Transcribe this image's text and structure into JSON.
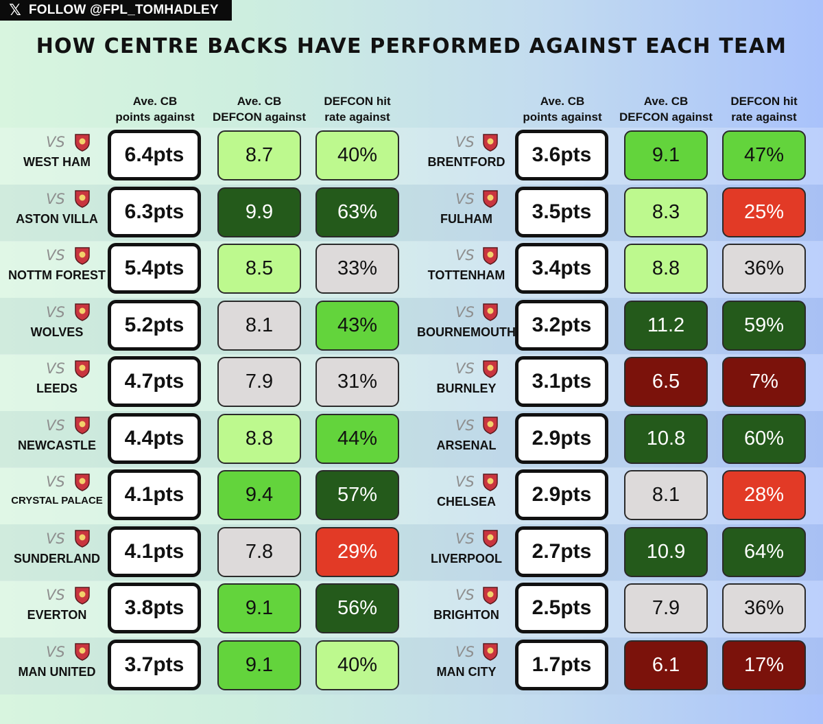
{
  "banner": {
    "icon": "x-logo-icon",
    "text": "FOLLOW @FPL_TOMHADLEY"
  },
  "title": "HOW CENTRE BACKS HAVE PERFORMED AGAINST EACH TEAM",
  "vs_label": "VS",
  "headers": {
    "points": [
      "Ave. CB",
      "points against"
    ],
    "defcon": [
      "Ave. CB",
      "DEFCON against"
    ],
    "hit_rate": [
      "DEFCON hit",
      "rate against"
    ]
  },
  "colors": {
    "light_green": "#bdf98e",
    "mid_green": "#63d43c",
    "dark_green": "#245a1b",
    "grey": "#dddada",
    "red": "#e23a26",
    "maroon": "#7b120b"
  },
  "left_table": [
    {
      "team": "WEST HAM",
      "crest": "west-ham-crest",
      "points": "6.4pts",
      "defcon": "8.7",
      "defcon_color": "light_green",
      "hit_rate": "40%",
      "hit_color": "light_green"
    },
    {
      "team": "ASTON VILLA",
      "crest": "aston-villa-crest",
      "points": "6.3pts",
      "defcon": "9.9",
      "defcon_color": "dark_green",
      "hit_rate": "63%",
      "hit_color": "dark_green"
    },
    {
      "team": "NOTTM FOREST",
      "crest": "nottm-forest-crest",
      "points": "5.4pts",
      "defcon": "8.5",
      "defcon_color": "light_green",
      "hit_rate": "33%",
      "hit_color": "grey"
    },
    {
      "team": "WOLVES",
      "crest": "wolves-crest",
      "points": "5.2pts",
      "defcon": "8.1",
      "defcon_color": "grey",
      "hit_rate": "43%",
      "hit_color": "mid_green"
    },
    {
      "team": "LEEDS",
      "crest": "leeds-crest",
      "points": "4.7pts",
      "defcon": "7.9",
      "defcon_color": "grey",
      "hit_rate": "31%",
      "hit_color": "grey"
    },
    {
      "team": "NEWCASTLE",
      "crest": "newcastle-crest",
      "points": "4.4pts",
      "defcon": "8.8",
      "defcon_color": "light_green",
      "hit_rate": "44%",
      "hit_color": "mid_green"
    },
    {
      "team": "CRYSTAL PALACE",
      "crest": "crystal-palace-crest",
      "points": "4.1pts",
      "defcon": "9.4",
      "defcon_color": "mid_green",
      "hit_rate": "57%",
      "hit_color": "dark_green"
    },
    {
      "team": "SUNDERLAND",
      "crest": "sunderland-crest",
      "points": "4.1pts",
      "defcon": "7.8",
      "defcon_color": "grey",
      "hit_rate": "29%",
      "hit_color": "red"
    },
    {
      "team": "EVERTON",
      "crest": "everton-crest",
      "points": "3.8pts",
      "defcon": "9.1",
      "defcon_color": "mid_green",
      "hit_rate": "56%",
      "hit_color": "dark_green"
    },
    {
      "team": "MAN UNITED",
      "crest": "man-united-crest",
      "points": "3.7pts",
      "defcon": "9.1",
      "defcon_color": "mid_green",
      "hit_rate": "40%",
      "hit_color": "light_green"
    }
  ],
  "right_table": [
    {
      "team": "BRENTFORD",
      "crest": "brentford-crest",
      "points": "3.6pts",
      "defcon": "9.1",
      "defcon_color": "mid_green",
      "hit_rate": "47%",
      "hit_color": "mid_green"
    },
    {
      "team": "FULHAM",
      "crest": "fulham-crest",
      "points": "3.5pts",
      "defcon": "8.3",
      "defcon_color": "light_green",
      "hit_rate": "25%",
      "hit_color": "red"
    },
    {
      "team": "TOTTENHAM",
      "crest": "tottenham-crest",
      "points": "3.4pts",
      "defcon": "8.8",
      "defcon_color": "light_green",
      "hit_rate": "36%",
      "hit_color": "grey"
    },
    {
      "team": "BOURNEMOUTH",
      "crest": "bournemouth-crest",
      "points": "3.2pts",
      "defcon": "11.2",
      "defcon_color": "dark_green",
      "hit_rate": "59%",
      "hit_color": "dark_green"
    },
    {
      "team": "BURNLEY",
      "crest": "burnley-crest",
      "points": "3.1pts",
      "defcon": "6.5",
      "defcon_color": "maroon",
      "hit_rate": "7%",
      "hit_color": "maroon"
    },
    {
      "team": "ARSENAL",
      "crest": "arsenal-crest",
      "points": "2.9pts",
      "defcon": "10.8",
      "defcon_color": "dark_green",
      "hit_rate": "60%",
      "hit_color": "dark_green"
    },
    {
      "team": "CHELSEA",
      "crest": "chelsea-crest",
      "points": "2.9pts",
      "defcon": "8.1",
      "defcon_color": "grey",
      "hit_rate": "28%",
      "hit_color": "red"
    },
    {
      "team": "LIVERPOOL",
      "crest": "liverpool-crest",
      "points": "2.7pts",
      "defcon": "10.9",
      "defcon_color": "dark_green",
      "hit_rate": "64%",
      "hit_color": "dark_green"
    },
    {
      "team": "BRIGHTON",
      "crest": "brighton-crest",
      "points": "2.5pts",
      "defcon": "7.9",
      "defcon_color": "grey",
      "hit_rate": "36%",
      "hit_color": "grey"
    },
    {
      "team": "MAN CITY",
      "crest": "man-city-crest",
      "points": "1.7pts",
      "defcon": "6.1",
      "defcon_color": "maroon",
      "hit_rate": "17%",
      "hit_color": "maroon"
    }
  ]
}
